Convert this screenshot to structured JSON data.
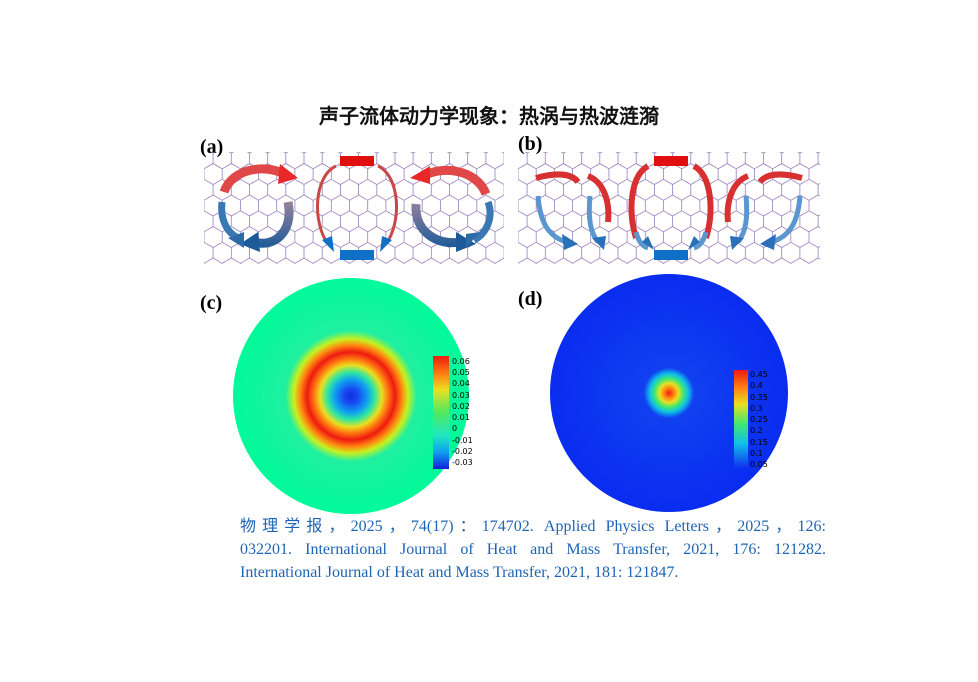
{
  "title": "声子流体动力学现象：热涡与热波涟漪",
  "panels": {
    "a": "(a)",
    "b": "(b)",
    "c": "(c)",
    "d": "(d)"
  },
  "colorbar_c": [
    "0.06",
    "0.05",
    "0.04",
    "0.03",
    "0.02",
    "0.01",
    "0",
    "-0.01",
    "-0.02",
    "-0.03"
  ],
  "colorbar_d": [
    "0.45",
    "0.4",
    "0.35",
    "0.3",
    "0.25",
    "0.2",
    "0.15",
    "0.1",
    "0.05"
  ],
  "references": {
    "line1": "物理学报，2025，74(17)：174702.   Applied Physics Letters，2025，126:",
    "line2": "032201. International Journal of Heat and Mass Transfer, 2021, 176: 121282.",
    "line3": "International  Journal  of Heat and Mass Transfer, 2021, 181: 121847."
  },
  "colors": {
    "hot": "#e01010",
    "cold": "#1070c8",
    "lattice": "#8a6ab4",
    "reference_text": "#1e64b4"
  }
}
